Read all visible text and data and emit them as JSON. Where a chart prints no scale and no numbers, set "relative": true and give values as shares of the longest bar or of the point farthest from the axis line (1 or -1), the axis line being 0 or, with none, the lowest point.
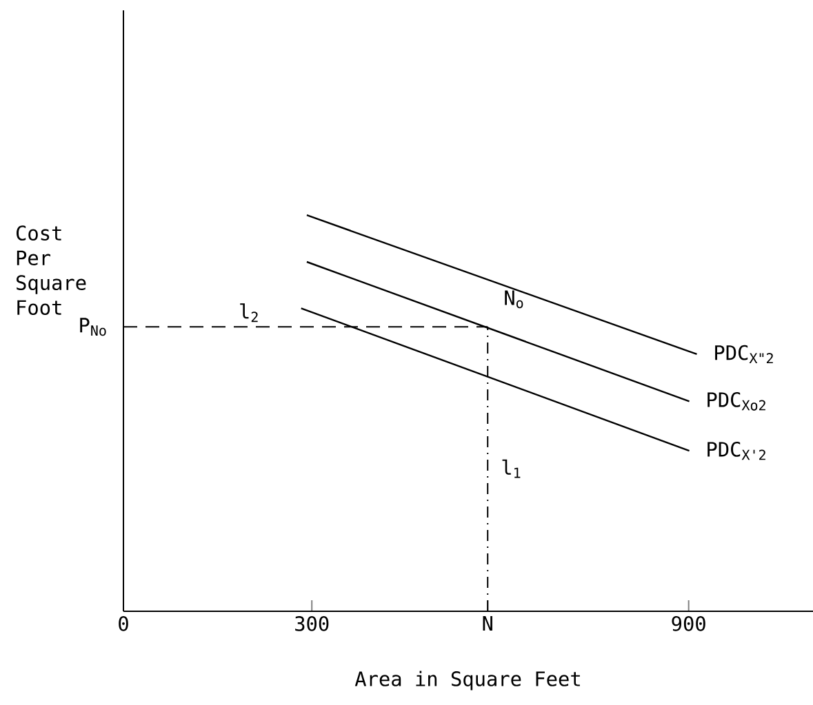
{
  "chart_data": {
    "type": "line",
    "relative": true,
    "xlabel": "Area in Square Feet",
    "ylabel": "Cost Per Square Foot",
    "xlim": [
      0,
      1098
    ],
    "xticks": [
      0,
      300,
      {
        "value": 580,
        "label": "N"
      },
      900
    ],
    "series": [
      {
        "name": "PDC$_{X\"2}$",
        "color": "#000000",
        "x": [
          292,
          913
        ],
        "values": [
          1.0,
          0.649
        ]
      },
      {
        "name": "PDC$_{Xo2}$",
        "color": "#000000",
        "x": [
          292,
          901
        ],
        "values": [
          0.882,
          0.53
        ]
      },
      {
        "name": "PDC$_{X'2}$",
        "color": "#000000",
        "x": [
          283,
          901
        ],
        "values": [
          0.765,
          0.405
        ]
      }
    ],
    "ref_lines": [
      {
        "axis": "y",
        "value": 0.718,
        "label": "l$_{2}$",
        "color": "#000000",
        "line_style": "dashed"
      },
      {
        "axis": "x",
        "value": 580,
        "label": "l$_{1}$",
        "color": "#000000",
        "line_style": "dashdot"
      }
    ],
    "annotations": [
      {
        "text": "P$_{No}$",
        "x": 0,
        "y": 0.718
      },
      {
        "text": "N$_{o}$",
        "x": 580,
        "y": 0.718
      }
    ]
  }
}
